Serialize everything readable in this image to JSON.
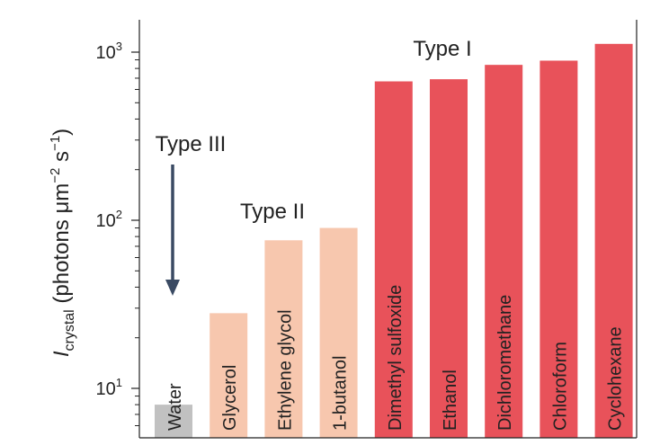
{
  "chart_data": {
    "type": "bar",
    "yscale": "log",
    "ylim": [
      6,
      1500
    ],
    "ylabel_main": "I",
    "ylabel_sub": "crystal",
    "ylabel_rest": " (photons μm",
    "ylabel_sup1": "−2",
    "ylabel_mid": " s",
    "ylabel_sup2": "−1",
    "ylabel_end": ")",
    "yticks": [
      {
        "value": 10,
        "base": "10",
        "exp": "1"
      },
      {
        "value": 100,
        "base": "10",
        "exp": "2"
      },
      {
        "value": 1000,
        "base": "10",
        "exp": "3"
      }
    ],
    "categories": [
      "Water",
      "Glycerol",
      "Ethylene glycol",
      "1-butanol",
      "Dimethyl sulfoxide",
      "Ethanol",
      "Dichloromethane",
      "Chloroform",
      "Cyclohexane"
    ],
    "values": [
      8,
      28,
      76,
      90,
      670,
      690,
      840,
      890,
      1120
    ],
    "types": [
      "III",
      "II",
      "II",
      "II",
      "I",
      "I",
      "I",
      "I",
      "I"
    ],
    "type_labels": {
      "I": "Type I",
      "II": "Type II",
      "III": "Type III"
    },
    "colors": {
      "I": "#e8525a",
      "II": "#f7c7ae",
      "III": "#c1c1c1",
      "arrow": "#3a4a63",
      "axis": "#222222"
    }
  }
}
